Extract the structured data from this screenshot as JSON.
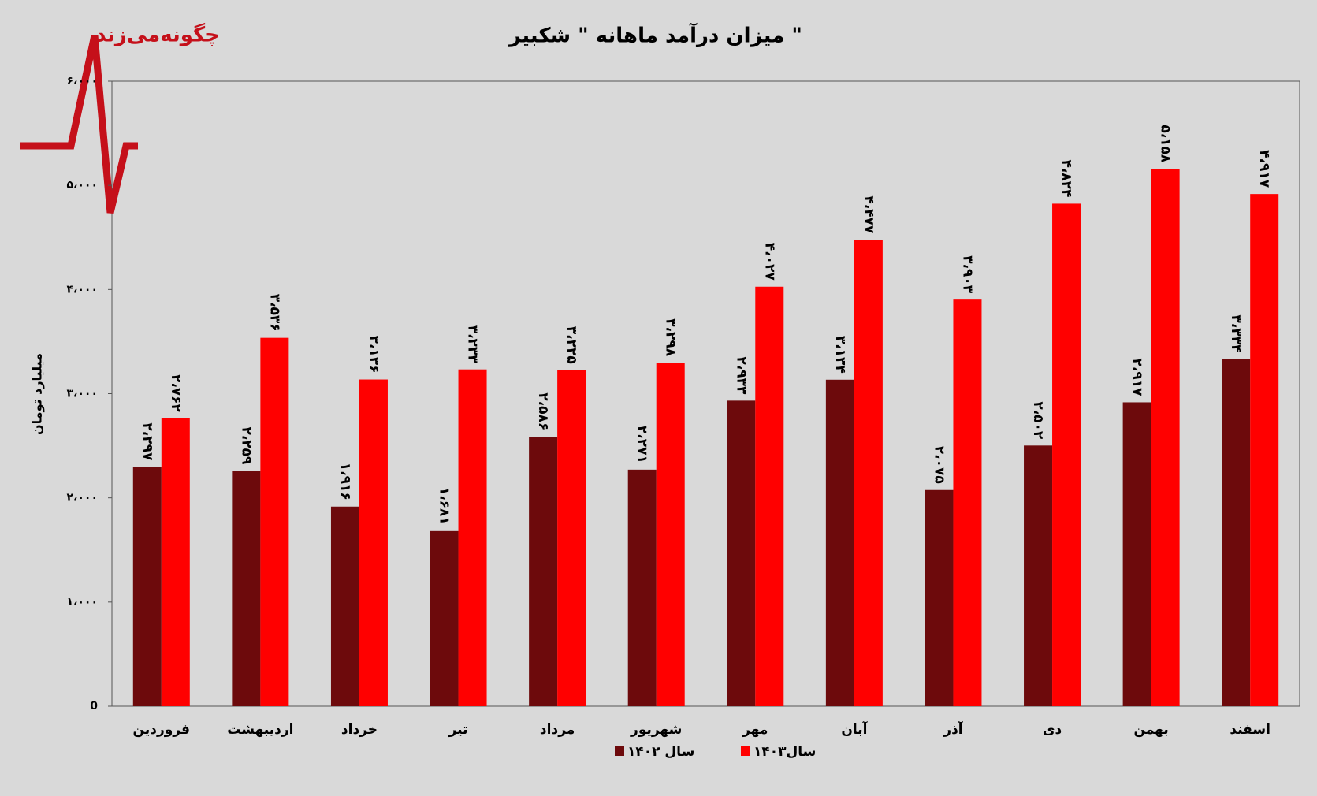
{
  "chart_data": {
    "type": "bar",
    "title": "میزان درآمد ماهانه \" شکبیر \"",
    "watermark": "چگونه‌می‌زند",
    "y_label": "میلیارد تومان",
    "categories": [
      "فروردین",
      "اردیبهشت",
      "خرداد",
      "تیر",
      "مرداد",
      "شهریور",
      "مهر",
      "آبان",
      "آذر",
      "دی",
      "بهمن",
      "اسفند"
    ],
    "series": [
      {
        "name": "سال ۱۴۰۲",
        "color": "#6d0a0c",
        "values": [
          2297,
          2259,
          1916,
          1681,
          2586,
          2271,
          2933,
          3134,
          2075,
          2502,
          2917,
          3334
        ],
        "value_labels": [
          "۲،۲۹۷",
          "۲،۲۵۹",
          "۱،۹۱۶",
          "۱،۶۸۱",
          "۲،۵۸۶",
          "۲،۲۷۱",
          "۲،۹۳۳",
          "۳،۱۳۴",
          "۲،۰۷۵",
          "۲،۵۰۲",
          "۲،۹۱۷",
          "۳،۳۳۴"
        ]
      },
      {
        "name": "سال۱۴۰۳",
        "color": "#ff0000",
        "values": [
          2762,
          3536,
          3136,
          3233,
          3225,
          3298,
          4027,
          4477,
          3903,
          4824,
          5158,
          4917
        ],
        "value_labels": [
          "۲،۷۶۲",
          "۳،۵۳۶",
          "۳،۱۳۶",
          "۳،۲۳۳",
          "۳،۲۲۵",
          "۳،۲۹۸",
          "۴،۰۲۷",
          "۴،۴۷۷",
          "۳،۹۰۳",
          "۴،۸۲۴",
          "۵،۱۵۸",
          "۴،۹۱۷"
        ]
      }
    ],
    "ylim": [
      0,
      6000
    ],
    "yticks": [
      0,
      {
        "value": 1000,
        "label": "۱،۰۰۰"
      },
      {
        "value": 2000,
        "label": "۲،۰۰۰"
      },
      {
        "value": 3000,
        "label": "۳،۰۰۰"
      },
      {
        "value": 4000,
        "label": "۴،۰۰۰"
      },
      {
        "value": 5000,
        "label": "۵،۰۰۰"
      },
      {
        "value": 6000,
        "label": "۶،۰۰۰"
      }
    ],
    "grid": false
  }
}
